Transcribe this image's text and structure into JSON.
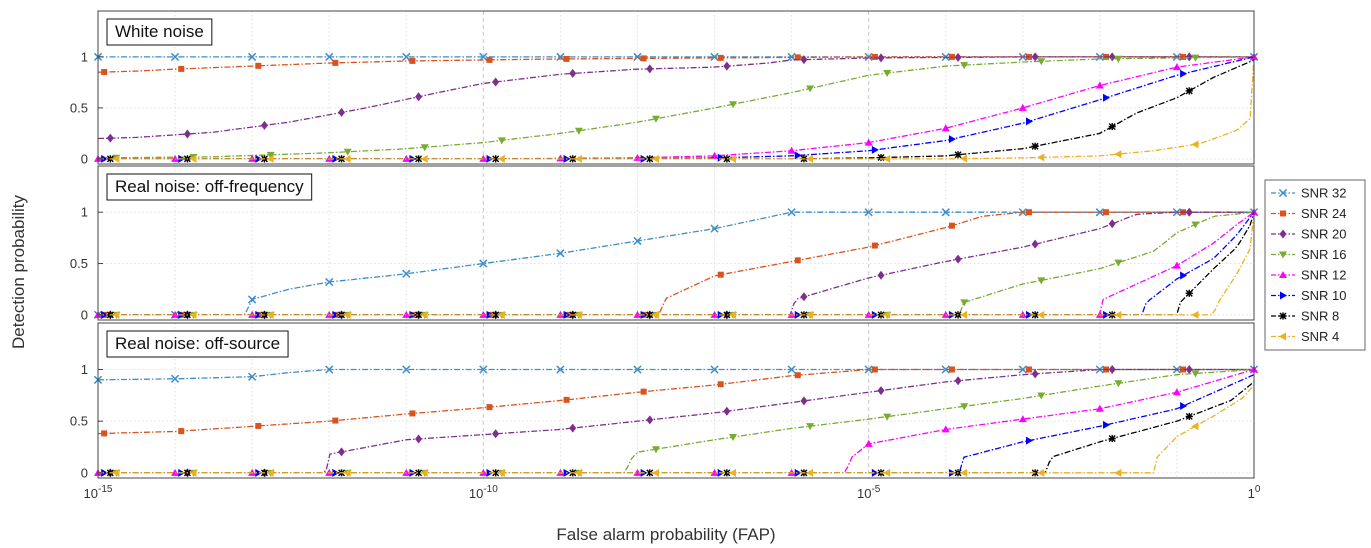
{
  "chart_data": {
    "type": "line",
    "ylabel": "Detection probability",
    "xlabel": "False alarm probability (FAP)",
    "x_scale": "log",
    "x_axis_label_values": [
      1e-15,
      1e-10,
      1e-05,
      1
    ],
    "x_tick_labels": [
      {
        "base": "10",
        "exp": "-15"
      },
      {
        "base": "10",
        "exp": "-10"
      },
      {
        "base": "10",
        "exp": "-5"
      },
      {
        "base": "1",
        "exp": "0"
      }
    ],
    "y_ticks": [
      {
        "value": 0,
        "label": "0"
      },
      {
        "value": 0.5,
        "label": "0.5"
      },
      {
        "value": 1,
        "label": "1"
      }
    ],
    "xlim": [
      1e-15,
      1
    ],
    "ylim": [
      -0.05,
      1.45
    ],
    "grid": true,
    "legend": {
      "placement": "right",
      "entries": [
        {
          "label": "SNR 32",
          "color": "#3d8ec9",
          "marker": "x"
        },
        {
          "label": "SNR 24",
          "color": "#d9531e",
          "marker": "square"
        },
        {
          "label": "SNR 20",
          "color": "#7e2f8e",
          "marker": "diamond"
        },
        {
          "label": "SNR 16",
          "color": "#77ac30",
          "marker": "triangle-down"
        },
        {
          "label": "SNR 12",
          "color": "#ff00ff",
          "marker": "triangle-up"
        },
        {
          "label": "SNR 10",
          "color": "#0000ff",
          "marker": "triangle-right"
        },
        {
          "label": "SNR 8",
          "color": "#000000",
          "marker": "star"
        },
        {
          "label": "SNR 4",
          "color": "#edb120",
          "marker": "triangle-left"
        }
      ]
    },
    "panels": [
      {
        "title": "White noise",
        "series": [
          {
            "name": "SNR 32",
            "x": [
              1e-15,
              1e-12,
              1e-09,
              1e-06,
              0.001,
              1
            ],
            "y": [
              1,
              1,
              1,
              1,
              1,
              1
            ]
          },
          {
            "name": "SNR 24",
            "x": [
              1e-15,
              3e-15,
              1e-14,
              1e-13,
              1e-12,
              1e-11,
              1e-09,
              1e-07,
              1e-05,
              0.001,
              1
            ],
            "y": [
              0.85,
              0.86,
              0.88,
              0.91,
              0.94,
              0.96,
              0.98,
              0.99,
              1,
              1,
              1
            ]
          },
          {
            "name": "SNR 20",
            "x": [
              1e-15,
              3e-15,
              3e-14,
              3e-13,
              3e-12,
              3e-11,
              1e-10,
              1e-09,
              1e-08,
              1e-07,
              5e-07,
              1e-06,
              1e-05,
              0.001,
              1
            ],
            "y": [
              0.2,
              0.21,
              0.26,
              0.36,
              0.5,
              0.66,
              0.74,
              0.83,
              0.88,
              0.9,
              0.94,
              0.97,
              0.99,
              1,
              1
            ]
          },
          {
            "name": "SNR 16",
            "x": [
              1e-15,
              3e-14,
              1e-12,
              1e-11,
              1e-10,
              1e-09,
              1e-08,
              1e-07,
              1e-06,
              1e-05,
              0.0001,
              0.001,
              0.01,
              1
            ],
            "y": [
              0.01,
              0.02,
              0.06,
              0.1,
              0.16,
              0.25,
              0.36,
              0.5,
              0.65,
              0.82,
              0.91,
              0.95,
              0.98,
              1
            ]
          },
          {
            "name": "SNR 12",
            "x": [
              1e-15,
              1e-10,
              1e-08,
              1e-07,
              1e-06,
              1e-05,
              0.0001,
              0.001,
              0.01,
              0.1,
              1
            ],
            "y": [
              0,
              0,
              0.01,
              0.03,
              0.08,
              0.16,
              0.3,
              0.5,
              0.72,
              0.9,
              1
            ]
          },
          {
            "name": "SNR 10",
            "x": [
              1e-15,
              1e-08,
              1e-07,
              1e-06,
              1e-05,
              0.0001,
              0.001,
              0.01,
              0.1,
              1
            ],
            "y": [
              0,
              0,
              0.01,
              0.03,
              0.08,
              0.18,
              0.35,
              0.58,
              0.82,
              1
            ]
          },
          {
            "name": "SNR 8",
            "x": [
              1e-15,
              1e-06,
              1e-05,
              0.0001,
              0.001,
              0.01,
              0.03,
              0.1,
              0.3,
              1
            ],
            "y": [
              0,
              0,
              0.01,
              0.03,
              0.1,
              0.25,
              0.45,
              0.6,
              0.8,
              0.97
            ]
          },
          {
            "name": "SNR 4",
            "x": [
              1e-15,
              0.0001,
              0.001,
              0.01,
              0.05,
              0.2,
              0.6,
              0.9,
              0.99,
              1
            ],
            "y": [
              0,
              0,
              0.01,
              0.03,
              0.08,
              0.15,
              0.28,
              0.4,
              0.5,
              1
            ]
          }
        ]
      },
      {
        "title": "Real noise: off-frequency",
        "series": [
          {
            "name": "SNR 32",
            "x": [
              1e-15,
              8e-14,
              1e-13,
              3e-13,
              1e-12,
              1e-11,
              1e-10,
              1e-09,
              1e-08,
              1e-07,
              1e-06,
              1e-05,
              0.0001,
              1
            ],
            "y": [
              0,
              0,
              0.15,
              0.25,
              0.32,
              0.4,
              0.5,
              0.6,
              0.72,
              0.84,
              1,
              1,
              1,
              1
            ]
          },
          {
            "name": "SNR 24",
            "x": [
              1e-15,
              2e-08,
              2.2e-08,
              1e-07,
              1e-06,
              1e-05,
              0.0001,
              0.0003,
              0.001,
              1
            ],
            "y": [
              0,
              0,
              0.15,
              0.38,
              0.52,
              0.66,
              0.85,
              0.96,
              1,
              1
            ]
          },
          {
            "name": "SNR 20",
            "x": [
              1e-15,
              1e-06,
              1.1e-06,
              1e-05,
              0.0001,
              0.001,
              0.01,
              0.03,
              0.1,
              1
            ],
            "y": [
              0,
              0,
              0.15,
              0.36,
              0.52,
              0.66,
              0.84,
              0.98,
              1,
              1
            ]
          },
          {
            "name": "SNR 16",
            "x": [
              1e-15,
              0.00015,
              0.00017,
              0.001,
              0.01,
              0.05,
              0.1,
              0.3,
              1
            ],
            "y": [
              0,
              0,
              0.12,
              0.3,
              0.45,
              0.62,
              0.8,
              0.96,
              1
            ]
          },
          {
            "name": "SNR 12",
            "x": [
              1e-15,
              0.01,
              0.011,
              0.03,
              0.1,
              0.3,
              0.6,
              1
            ],
            "y": [
              0,
              0,
              0.15,
              0.3,
              0.48,
              0.7,
              0.88,
              1
            ]
          },
          {
            "name": "SNR 10",
            "x": [
              1e-15,
              0.035,
              0.04,
              0.1,
              0.3,
              0.6,
              1
            ],
            "y": [
              0,
              0,
              0.12,
              0.35,
              0.55,
              0.78,
              1
            ]
          },
          {
            "name": "SNR 8",
            "x": [
              1e-15,
              0.1,
              0.11,
              0.3,
              0.6,
              0.9,
              1
            ],
            "y": [
              0,
              0,
              0.12,
              0.45,
              0.66,
              0.88,
              1
            ]
          },
          {
            "name": "SNR 4",
            "x": [
              1e-15,
              0.3,
              0.33,
              0.6,
              0.9,
              0.99,
              1
            ],
            "y": [
              0,
              0,
              0.1,
              0.4,
              0.65,
              0.85,
              1
            ]
          }
        ]
      },
      {
        "title": "Real noise: off-source",
        "series": [
          {
            "name": "SNR 32",
            "x": [
              1e-15,
              1e-14,
              1e-13,
              3e-13,
              1e-12,
              1e-10,
              1e-05,
              1
            ],
            "y": [
              0.9,
              0.91,
              0.93,
              0.97,
              1,
              1,
              1,
              1
            ]
          },
          {
            "name": "SNR 24",
            "x": [
              1e-15,
              1e-14,
              1e-13,
              1e-12,
              1e-11,
              1e-10,
              1e-09,
              1e-08,
              1e-07,
              1e-06,
              1e-05,
              0.0001,
              1
            ],
            "y": [
              0.38,
              0.4,
              0.45,
              0.5,
              0.57,
              0.63,
              0.7,
              0.78,
              0.85,
              0.94,
              1,
              1,
              1
            ]
          },
          {
            "name": "SNR 20",
            "x": [
              1e-15,
              9e-13,
              1e-12,
              1e-11,
              1e-10,
              1e-09,
              1e-08,
              1e-07,
              1e-06,
              1e-05,
              0.0001,
              0.001,
              0.01,
              1
            ],
            "y": [
              0,
              0,
              0.18,
              0.32,
              0.37,
              0.42,
              0.5,
              0.58,
              0.68,
              0.78,
              0.88,
              0.95,
              1,
              1
            ]
          },
          {
            "name": "SNR 16",
            "x": [
              1e-15,
              7e-09,
              8e-09,
              1e-08,
              1e-07,
              1e-06,
              1e-05,
              0.0001,
              0.001,
              0.01,
              0.1,
              1
            ],
            "y": [
              0,
              0,
              0.12,
              0.2,
              0.32,
              0.43,
              0.52,
              0.62,
              0.72,
              0.84,
              0.95,
              1
            ]
          },
          {
            "name": "SNR 12",
            "x": [
              1e-15,
              5e-06,
              6e-06,
              1e-05,
              0.0001,
              0.001,
              0.01,
              0.1,
              1
            ],
            "y": [
              0,
              0,
              0.15,
              0.28,
              0.42,
              0.52,
              0.62,
              0.78,
              1
            ]
          },
          {
            "name": "SNR 10",
            "x": [
              1e-15,
              0.00015,
              0.00017,
              0.001,
              0.01,
              0.1,
              1
            ],
            "y": [
              0,
              0,
              0.15,
              0.3,
              0.45,
              0.62,
              0.95
            ]
          },
          {
            "name": "SNR 8",
            "x": [
              1e-15,
              0.002,
              0.0023,
              0.01,
              0.1,
              0.5,
              1
            ],
            "y": [
              0,
              0,
              0.15,
              0.3,
              0.5,
              0.7,
              0.88
            ]
          },
          {
            "name": "SNR 4",
            "x": [
              1e-15,
              0.05,
              0.055,
              0.1,
              0.3,
              0.7,
              1
            ],
            "y": [
              0,
              0,
              0.15,
              0.35,
              0.55,
              0.72,
              0.85
            ]
          }
        ]
      }
    ]
  }
}
